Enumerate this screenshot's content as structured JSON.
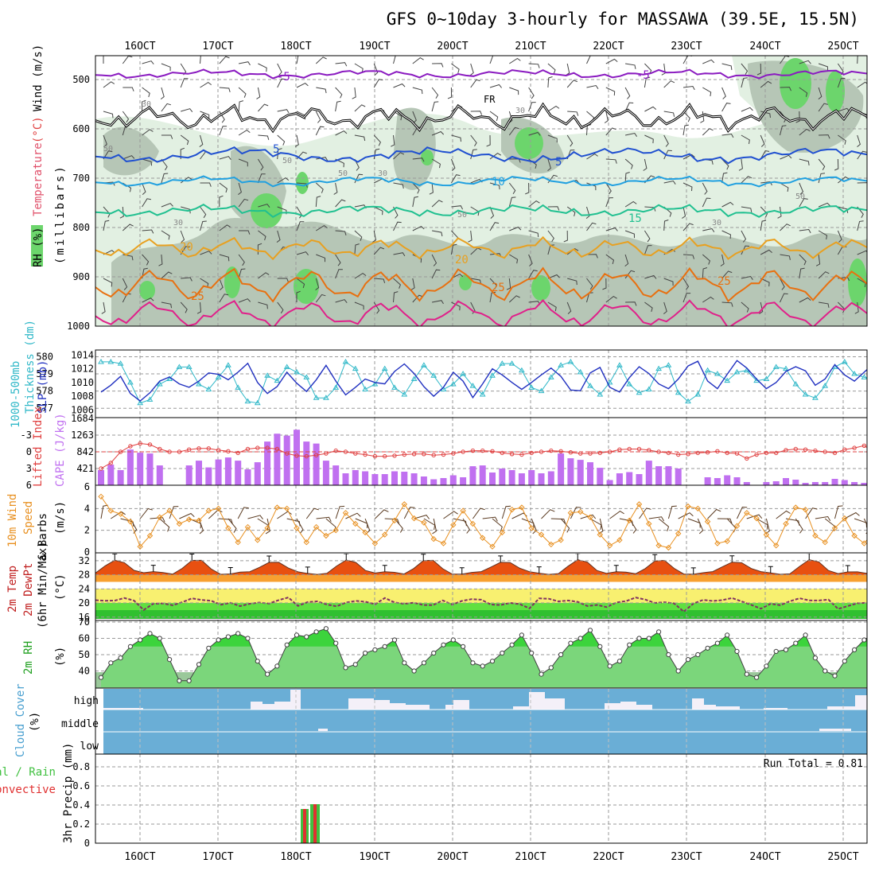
{
  "title": "GFS 0~10day 3-hourly for MASSAWA (39.5E, 15.5N)",
  "dates": [
    "16OCT",
    "17OCT",
    "18OCT",
    "19OCT",
    "20OCT",
    "21OCT",
    "22OCT",
    "23OCT",
    "24OCT",
    "25OCT"
  ],
  "colors": {
    "rh_green": "#6cd56c",
    "rh_light": "#e2f0e2",
    "rh_mid": "#b6c6b6",
    "temp_purple": "#8a1ac0",
    "temp_blue": "#2050d0",
    "temp_cyan": "#20a0e0",
    "temp_teal": "#20c090",
    "temp_orange": "#e8a020",
    "temp_dorange": "#e87010",
    "temp_pink": "#e0208a",
    "freeze": "#000000",
    "thick": "#30b8c8",
    "slp": "#2030c0",
    "li": "#e04040",
    "cape": "#c070f0",
    "wind": "#e89020",
    "barb": "#5a3a20",
    "cloud_bg": "#6aaed6",
    "cloud_fill": "#f4f0f8",
    "precip_green": "#40c040",
    "precip_red": "#e03030"
  },
  "panels": {
    "upper": {
      "labels": {
        "rh": "RH (%)",
        "temperature": "Temperature",
        "temp_unit": "(°C)",
        "wind": "Wind (m/s)",
        "pressure": "(millibars)"
      },
      "pressure_ticks": [
        "500",
        "600",
        "700",
        "800",
        "900",
        "1000"
      ],
      "contour_labels": {
        "t_m5a": "-5",
        "t_m5b": "-5",
        "fr": "FR",
        "t5a": "5",
        "t5b": "5",
        "t10": "10",
        "t15": "15",
        "t20": "20",
        "t20b": "20",
        "t25a": "25",
        "t25b": "25",
        "t25c": "25",
        "rh30a": "30",
        "rh30b": "30",
        "rh30c": "30",
        "rh30d": "30",
        "rh30e": "30",
        "rh50a": "50",
        "rh50b": "50",
        "rh50c": "50",
        "rh50d": "50",
        "rh50e": "50"
      }
    },
    "thickness_slp": {
      "labels": {
        "thickness": "1000-500mb",
        "thickness2": "Thickness (dm)",
        "slp": "SLP (mb)"
      },
      "left_ticks": [
        "580",
        "579",
        "578",
        "577"
      ],
      "right_ticks": [
        "1014",
        "1012",
        "1010",
        "1008",
        "1006"
      ]
    },
    "cape_li": {
      "labels": {
        "li": "Lifted Index",
        "cape": "CAPE (J/kg)"
      },
      "li_ticks": [
        "-3",
        "0",
        "3",
        "6"
      ],
      "cape_ticks": [
        "1684",
        "1263",
        "842",
        "421"
      ]
    },
    "wind10m": {
      "labels": {
        "a": "10m Wind",
        "b": "Speed",
        "c": "& Barbs",
        "unit": "(m/s)"
      },
      "ticks": [
        "6",
        "4",
        "2",
        "0"
      ]
    },
    "temp2m": {
      "labels": {
        "a": "2m Temp",
        "b": "2m DewPt",
        "c": "(6hr Min/Max)",
        "unit": "(°C)"
      },
      "ticks": [
        "32",
        "28",
        "24",
        "20",
        "16"
      ]
    },
    "rh2m": {
      "labels": {
        "a": "2m RH",
        "unit": "(%)"
      },
      "ticks": [
        "70",
        "60",
        "50",
        "40"
      ]
    },
    "cloud": {
      "labels": {
        "a": "Cloud Cover",
        "unit": "(%)",
        "high": "high",
        "middle": "middle",
        "low": "low"
      }
    },
    "precip": {
      "labels": {
        "a": "Total / Rain",
        "b": "Convective",
        "c": "3hr Precip (mm)"
      },
      "run_total": "Run Total = 0.81",
      "ticks": [
        "0.8",
        "0.6",
        "0.4",
        "0.2",
        "0"
      ]
    }
  },
  "chart_data": [
    {
      "type": "line",
      "title": "Thickness 1000-500mb (dm)",
      "ylim": [
        576.5,
        580.3
      ],
      "values": [
        579.7,
        579.7,
        579.6,
        578.5,
        577.3,
        577.5,
        578.4,
        578.7,
        579.4,
        579.4,
        578.4,
        578.1,
        578.8,
        579.5,
        578.2,
        577.4,
        577.3,
        578.9,
        578.6,
        579.4,
        579.1,
        578.8,
        577.6,
        577.6,
        578.2,
        579.7,
        579.3,
        578.1,
        578.4,
        579.3,
        578.2,
        577.8,
        578.7,
        579.5,
        578.9,
        578.1,
        578.4,
        579.0,
        578.3,
        577.8,
        578.9,
        579.6,
        579.6,
        579.2,
        578.2,
        578.0,
        578.8,
        579.5,
        579.7,
        579.1,
        578.3,
        577.8,
        578.5,
        579.5,
        578.4,
        577.9,
        578.1,
        579.3,
        579.5,
        577.9,
        577.4,
        577.8,
        579.2,
        579.0,
        578.6,
        579.1,
        579.2,
        578.6,
        578.7,
        579.4,
        579.3,
        578.4,
        577.8,
        577.6,
        578.3,
        579.4,
        579.7,
        579.0,
        578.8,
        578.8
      ]
    },
    {
      "type": "line",
      "title": "SLP (mb)",
      "ylim": [
        1005,
        1014.5
      ],
      "values": [
        1008.6,
        1009.6,
        1010.9,
        1008.4,
        1007.3,
        1008.5,
        1010.2,
        1010.8,
        1009.8,
        1009.3,
        1010.2,
        1011.4,
        1011.2,
        1010.4,
        1011.5,
        1012.8,
        1010.0,
        1008.4,
        1009.4,
        1011.5,
        1009.9,
        1008.7,
        1010.4,
        1012.5,
        1010.2,
        1008.2,
        1009.3,
        1010.5,
        1010.0,
        1009.8,
        1011.6,
        1012.7,
        1011.3,
        1009.4,
        1008.0,
        1009.3,
        1011.5,
        1010.2,
        1007.8,
        1009.8,
        1012.0,
        1011.1,
        1010.0,
        1009.0,
        1010.0,
        1011.1,
        1012.1,
        1010.9,
        1008.9,
        1008.8,
        1011.4,
        1012.2,
        1009.3,
        1008.6,
        1010.7,
        1012.3,
        1011.3,
        1009.8,
        1009.1,
        1010.5,
        1012.4,
        1013.1,
        1010.2,
        1009.1,
        1011.2,
        1013.2,
        1012.1,
        1010.5,
        1009.1,
        1010.0,
        1011.6,
        1012.3,
        1011.7,
        1009.6,
        1010.5,
        1012.6,
        1011.1,
        1010.2,
        1011.5,
        1012.8
      ]
    },
    {
      "type": "bar",
      "title": "CAPE (J/kg)",
      "ylim": [
        0,
        1684
      ],
      "values": [
        380,
        520,
        380,
        900,
        820,
        800,
        500,
        0,
        0,
        500,
        620,
        450,
        650,
        700,
        620,
        400,
        580,
        1100,
        1300,
        1250,
        1400,
        1100,
        1050,
        620,
        500,
        300,
        380,
        350,
        280,
        280,
        350,
        340,
        300,
        220,
        150,
        180,
        250,
        200,
        480,
        500,
        320,
        420,
        380,
        300,
        380,
        300,
        350,
        800,
        680,
        640,
        580,
        440,
        130,
        300,
        330,
        280,
        620,
        480,
        480,
        420,
        0,
        0,
        200,
        180,
        250,
        200,
        80,
        0,
        80,
        100,
        180,
        140,
        60,
        80,
        80,
        160,
        130,
        80,
        60,
        200,
        200,
        200
      ]
    },
    {
      "type": "line",
      "title": "Lifted Index",
      "ylim": [
        -6,
        6
      ],
      "values": [
        3,
        2,
        0,
        -1,
        -1.5,
        -1.3,
        -0.5,
        0,
        0,
        -0.4,
        -0.6,
        -0.6,
        -0.3,
        -0.1,
        0.2,
        -0.5,
        -0.7,
        -0.7,
        -0.5,
        0.3,
        0.7,
        0.8,
        0.6,
        0.3,
        -0.2,
        0,
        0.3,
        0.5,
        0.8,
        0.8,
        0.7,
        0.5,
        0.4,
        0.4,
        0.6,
        0.5,
        0.3,
        0,
        -0.2,
        -0.2,
        -0.1,
        0.2,
        0.4,
        0.5,
        0.2,
        0,
        -0.2,
        -0.1,
        0.1,
        0.3,
        0.3,
        0.2,
        0,
        -0.4,
        -0.5,
        -0.5,
        -0.3,
        0,
        0.2,
        0.5,
        0.4,
        0.2,
        0.1,
        -0.1,
        0.2,
        0.3,
        1.2,
        0.5,
        0.2,
        0.2,
        -0.3,
        -0.5,
        -0.4,
        -0.2,
        0,
        0.2,
        -0.4,
        -0.7,
        -1.1,
        0
      ]
    },
    {
      "type": "line",
      "title": "10m Wind Speed (m/s)",
      "ylim": [
        0,
        6
      ],
      "values": [
        5.1,
        3.8,
        3.5,
        2.8,
        0.5,
        1.5,
        3.2,
        3.8,
        2.6,
        3.0,
        2.9,
        3.8,
        4.0,
        2.2,
        0.9,
        2.3,
        1.1,
        2.2,
        4.1,
        4.0,
        2.2,
        0.9,
        2.3,
        1.5,
        2.0,
        3.6,
        2.6,
        1.8,
        0.8,
        1.6,
        2.9,
        4.4,
        3.1,
        2.7,
        1.2,
        0.8,
        2.5,
        3.8,
        2.6,
        1.3,
        0.5,
        1.8,
        3.9,
        4.1,
        2.2,
        1.6,
        0.7,
        1.1,
        3.6,
        3.7,
        3.2,
        1.6,
        0.6,
        1.1,
        2.9,
        4.4,
        2.6,
        0.6,
        0.4,
        1.7,
        4.2,
        4.0,
        2.8,
        0.8,
        1.0,
        2.4,
        3.6,
        3.1,
        1.6,
        0.6,
        2.6,
        4.1,
        3.9,
        1.5,
        0.9,
        2.2,
        3.1,
        1.5,
        0.8,
        1.9
      ]
    },
    {
      "type": "area",
      "title": "2m RH (%)",
      "ylim": [
        30,
        70
      ],
      "values": [
        36,
        45,
        48,
        55,
        59,
        63,
        60,
        47,
        34,
        34,
        44,
        54,
        59,
        61,
        63,
        60,
        46,
        38,
        43,
        56,
        62,
        61,
        64,
        66,
        57,
        42,
        44,
        51,
        53,
        55,
        59,
        45,
        40,
        45,
        51,
        56,
        59,
        55,
        45,
        43,
        46,
        51,
        56,
        62,
        51,
        38,
        42,
        50,
        57,
        60,
        65,
        55,
        43,
        46,
        56,
        60,
        60,
        64,
        50,
        40,
        47,
        50,
        54,
        57,
        62,
        52,
        38,
        36,
        43,
        52,
        53,
        57,
        62,
        48,
        40,
        37,
        46,
        53,
        59,
        63
      ]
    }
  ]
}
